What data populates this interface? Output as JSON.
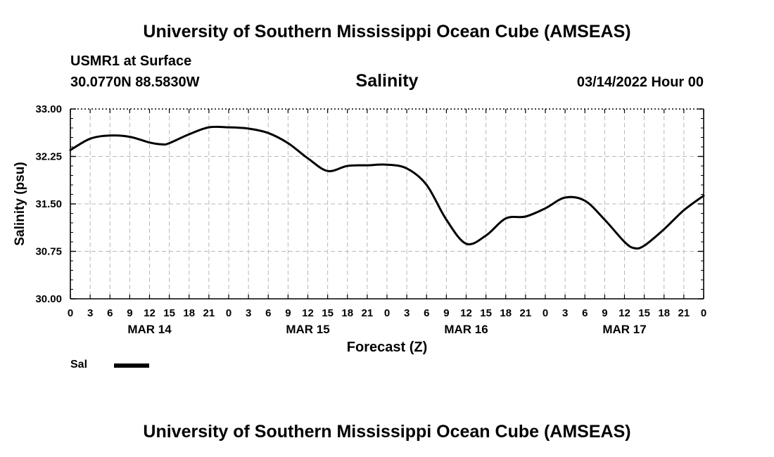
{
  "header": {
    "title_top": "University of Southern Mississippi Ocean Cube (AMSEAS)",
    "title_bottom": "University of Southern Mississippi Ocean Cube (AMSEAS)",
    "station": "USMR1 at Surface",
    "coords": "30.0770N  88.5830W",
    "date": "03/14/2022 Hour 00"
  },
  "legend": {
    "label": "Sal"
  },
  "chart_data": {
    "type": "line",
    "title": "Salinity",
    "xlabel": "Forecast (Z)",
    "ylabel": "Salinity (psu)",
    "ylim": [
      30.0,
      33.0
    ],
    "xlim_hours": [
      0,
      96
    ],
    "grid": true,
    "y_ticks": [
      "30.00",
      "30.75",
      "31.50",
      "32.25",
      "33.00"
    ],
    "y_tick_values": [
      30.0,
      30.75,
      31.5,
      32.25,
      33.0
    ],
    "x_tick_labels": [
      "0",
      "3",
      "6",
      "9",
      "12",
      "15",
      "18",
      "21",
      "0",
      "3",
      "6",
      "9",
      "12",
      "15",
      "18",
      "21",
      "0",
      "3",
      "6",
      "9",
      "12",
      "15",
      "18",
      "21",
      "0",
      "3",
      "6",
      "9",
      "12",
      "15",
      "18",
      "21",
      "0"
    ],
    "day_labels": [
      {
        "label": "MAR 14",
        "hour": 12
      },
      {
        "label": "MAR 15",
        "hour": 36
      },
      {
        "label": "MAR 16",
        "hour": 60
      },
      {
        "label": "MAR 17",
        "hour": 84
      }
    ],
    "series": [
      {
        "name": "Sal",
        "x": [
          0,
          3,
          6,
          9,
          12,
          14,
          15,
          18,
          21,
          24,
          27,
          30,
          33,
          36,
          39,
          42,
          45,
          48,
          51,
          54,
          57,
          60,
          63,
          66,
          69,
          72,
          75,
          78,
          81,
          84,
          85.5,
          87,
          90,
          93,
          96
        ],
        "y": [
          32.35,
          32.53,
          32.58,
          32.56,
          32.47,
          32.44,
          32.46,
          32.6,
          32.71,
          32.71,
          32.69,
          32.62,
          32.46,
          32.22,
          32.02,
          32.1,
          32.11,
          32.12,
          32.06,
          31.8,
          31.25,
          30.87,
          31.0,
          31.27,
          31.3,
          31.43,
          31.6,
          31.55,
          31.25,
          30.9,
          30.8,
          30.84,
          31.1,
          31.4,
          31.63
        ]
      }
    ]
  }
}
